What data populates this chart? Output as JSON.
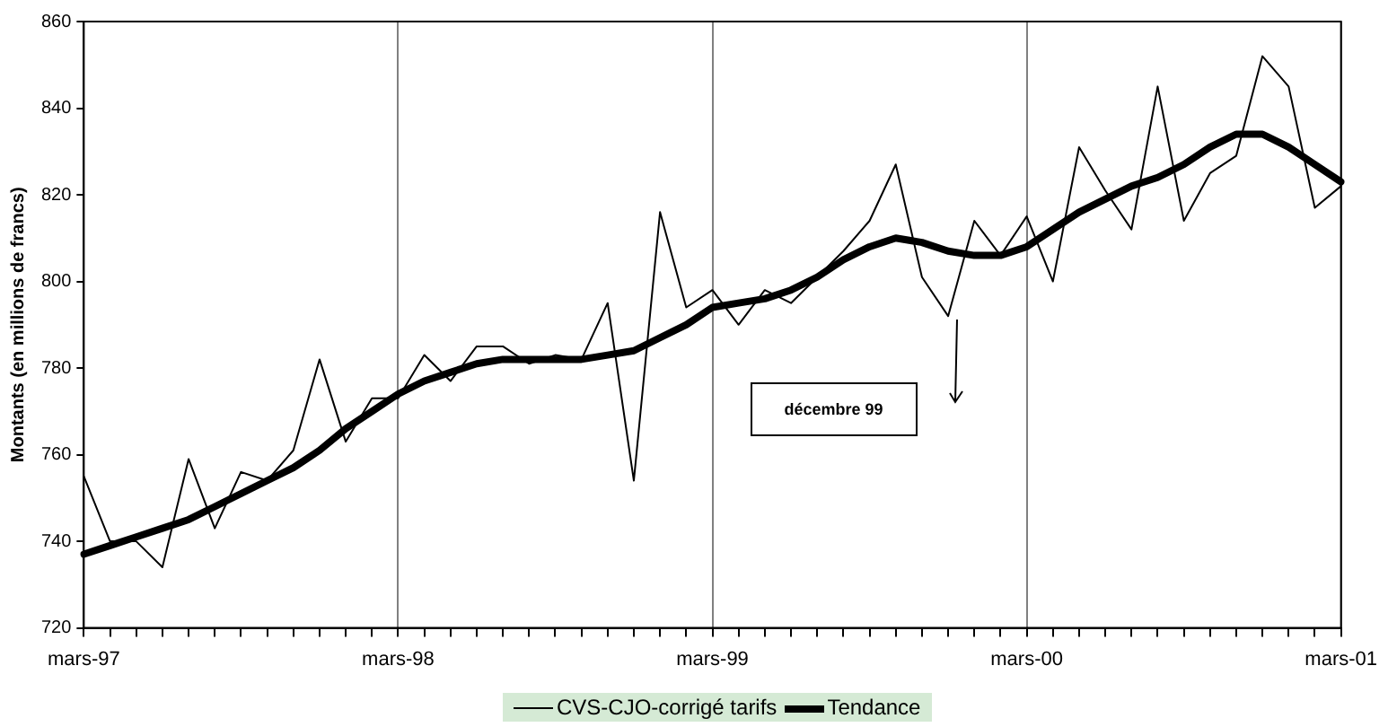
{
  "chart_data": {
    "type": "line",
    "ylabel": "Montants (en millions de francs)",
    "categories": [
      "mars-97",
      null,
      null,
      null,
      null,
      null,
      null,
      null,
      null,
      null,
      null,
      null,
      "mars-98",
      null,
      null,
      null,
      null,
      null,
      null,
      null,
      null,
      null,
      null,
      null,
      "mars-99",
      null,
      null,
      null,
      null,
      null,
      null,
      null,
      null,
      null,
      null,
      null,
      "mars-00",
      null,
      null,
      null,
      null,
      null,
      null,
      null,
      null,
      null,
      null,
      null,
      "mars-01"
    ],
    "series": [
      {
        "name": "CVS-CJO-corrigé tarifs",
        "color": "#000000",
        "values": [
          755,
          740,
          740,
          734,
          759,
          743,
          756,
          754,
          761,
          782,
          763,
          773,
          773,
          783,
          777,
          785,
          785,
          781,
          783,
          782,
          795,
          754,
          816,
          794,
          798,
          790,
          798,
          795,
          801,
          807,
          814,
          827,
          801,
          792,
          814,
          806,
          815,
          800,
          831,
          821,
          812,
          845,
          814,
          825,
          829,
          852,
          845,
          817,
          822
        ]
      },
      {
        "name": "Tendance",
        "color": "#000000",
        "values": [
          737,
          739,
          741,
          743,
          745,
          748,
          751,
          754,
          757,
          761,
          766,
          770,
          774,
          777,
          779,
          781,
          782,
          782,
          782,
          782,
          783,
          784,
          787,
          790,
          794,
          795,
          796,
          798,
          801,
          805,
          808,
          810,
          809,
          807,
          806,
          806,
          808,
          812,
          816,
          819,
          822,
          824,
          827,
          831,
          834,
          834,
          831,
          827,
          823
        ]
      }
    ],
    "ylim": [
      720,
      860
    ],
    "yticks": [
      720,
      740,
      760,
      780,
      800,
      820,
      840,
      860
    ],
    "grid": "x",
    "legend": "bottom",
    "marker": "none",
    "line_style": "solid",
    "annotations": [
      "décembre 99"
    ]
  }
}
